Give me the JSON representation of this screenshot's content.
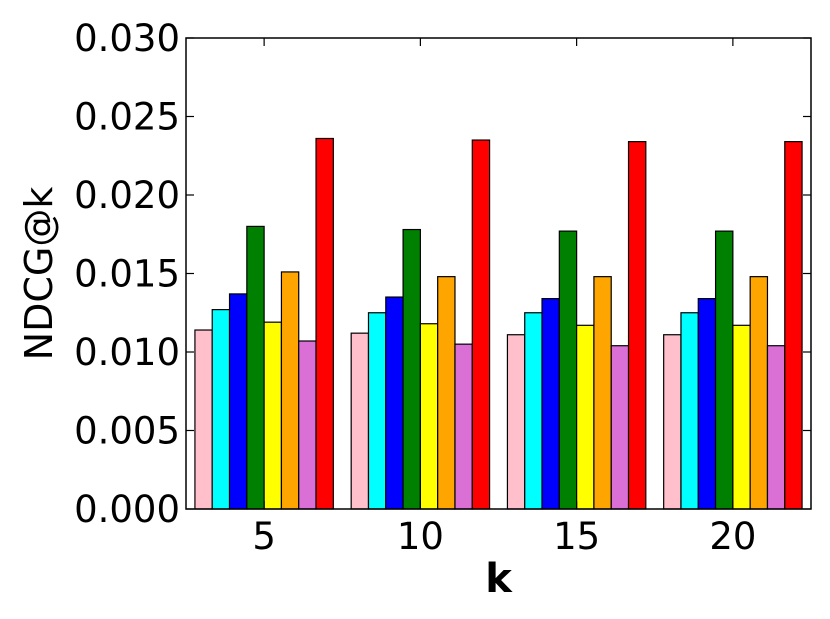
{
  "chart_data": {
    "type": "bar",
    "title": "",
    "xlabel": "k",
    "ylabel": "NDCG@k",
    "categories": [
      "5",
      "10",
      "15",
      "20"
    ],
    "ylim": [
      0,
      0.03
    ],
    "yticks": [
      "0.000",
      "0.005",
      "0.010",
      "0.015",
      "0.020",
      "0.025",
      "0.030"
    ],
    "grid": false,
    "legend": "none",
    "series": [
      {
        "color": "#ffc0cb",
        "values": [
          0.0114,
          0.0112,
          0.0111,
          0.0111
        ]
      },
      {
        "color": "#00ffff",
        "values": [
          0.0127,
          0.0125,
          0.0125,
          0.0125
        ]
      },
      {
        "color": "#0000ff",
        "values": [
          0.0137,
          0.0135,
          0.0134,
          0.0134
        ]
      },
      {
        "color": "#008000",
        "values": [
          0.018,
          0.0178,
          0.0177,
          0.0177
        ]
      },
      {
        "color": "#ffff00",
        "values": [
          0.0119,
          0.0118,
          0.0117,
          0.0117
        ]
      },
      {
        "color": "#ffa500",
        "values": [
          0.0151,
          0.0148,
          0.0148,
          0.0148
        ]
      },
      {
        "color": "#da70d6",
        "values": [
          0.0107,
          0.0105,
          0.0104,
          0.0104
        ]
      },
      {
        "color": "#ff0000",
        "values": [
          0.0236,
          0.0235,
          0.0234,
          0.0234
        ]
      }
    ]
  }
}
